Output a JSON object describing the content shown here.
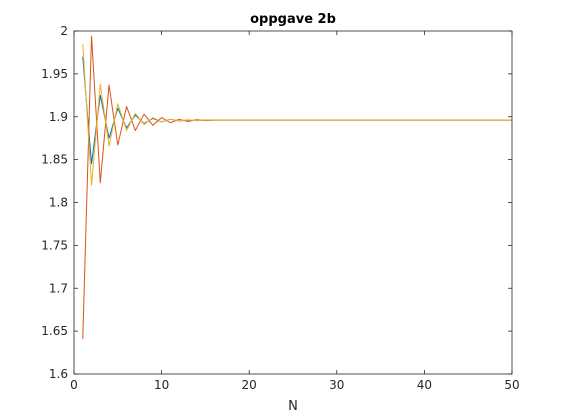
{
  "chart_data": {
    "type": "line",
    "title": "oppgave 2b",
    "xlabel": "N",
    "ylabel": "",
    "xlim": [
      0,
      50
    ],
    "ylim": [
      1.6,
      2.0
    ],
    "xticks": [
      "0",
      "10",
      "20",
      "30",
      "40",
      "50"
    ],
    "yticks": [
      "1.6",
      "1.65",
      "1.7",
      "1.75",
      "1.8",
      "1.85",
      "1.9",
      "1.95",
      "2"
    ],
    "grid": false,
    "series": [
      {
        "color": "#0072BD",
        "x": [
          1,
          2,
          3,
          4,
          5,
          6,
          7,
          8,
          9,
          10,
          11,
          12,
          13,
          14,
          15,
          16,
          17,
          18,
          19,
          20,
          21,
          22,
          23,
          24,
          25,
          26,
          27,
          28,
          29,
          30,
          31,
          32,
          33,
          34,
          35,
          36,
          37,
          38,
          39,
          40,
          41,
          42,
          43,
          44,
          45,
          46,
          47,
          48,
          49,
          50
        ],
        "y": [
          1.97,
          1.845,
          1.925,
          1.875,
          1.91,
          1.887,
          1.902,
          1.892,
          1.898,
          1.894,
          1.897,
          1.895,
          1.896,
          1.8955,
          1.896,
          1.896,
          1.896,
          1.896,
          1.896,
          1.896,
          1.896,
          1.896,
          1.896,
          1.896,
          1.896,
          1.896,
          1.896,
          1.896,
          1.896,
          1.896,
          1.896,
          1.896,
          1.896,
          1.896,
          1.896,
          1.896,
          1.896,
          1.896,
          1.896,
          1.896,
          1.896,
          1.896,
          1.896,
          1.896,
          1.896,
          1.896,
          1.896,
          1.896,
          1.896,
          1.896
        ]
      },
      {
        "color": "#D95319",
        "x": [
          1,
          2,
          3,
          4,
          5,
          6,
          7,
          8,
          9,
          10,
          11,
          12,
          13,
          14,
          15,
          16,
          17,
          18,
          19,
          20,
          21,
          22,
          23,
          24,
          25,
          26,
          27,
          28,
          29,
          30,
          31,
          32,
          33,
          34,
          35,
          36,
          37,
          38,
          39,
          40,
          41,
          42,
          43,
          44,
          45,
          46,
          47,
          48,
          49,
          50
        ],
        "y": [
          1.641,
          1.994,
          1.823,
          1.937,
          1.867,
          1.912,
          1.884,
          1.903,
          1.89,
          1.899,
          1.893,
          1.897,
          1.8945,
          1.8965,
          1.8955,
          1.896,
          1.896,
          1.896,
          1.896,
          1.896,
          1.896,
          1.896,
          1.896,
          1.896,
          1.896,
          1.896,
          1.896,
          1.896,
          1.896,
          1.896,
          1.896,
          1.896,
          1.896,
          1.896,
          1.896,
          1.896,
          1.896,
          1.896,
          1.896,
          1.896,
          1.896,
          1.896,
          1.896,
          1.896,
          1.896,
          1.896,
          1.896,
          1.896,
          1.896,
          1.896
        ]
      },
      {
        "color": "#EDB120",
        "x": [
          1,
          2,
          3,
          4,
          5,
          6,
          7,
          8,
          9,
          10,
          11,
          12,
          13,
          14,
          15,
          16,
          17,
          18,
          19,
          20,
          21,
          22,
          23,
          24,
          25,
          26,
          27,
          28,
          29,
          30,
          31,
          32,
          33,
          34,
          35,
          36,
          37,
          38,
          39,
          40,
          41,
          42,
          43,
          44,
          45,
          46,
          47,
          48,
          49,
          50
        ],
        "y": [
          1.985,
          1.82,
          1.938,
          1.866,
          1.915,
          1.884,
          1.904,
          1.891,
          1.899,
          1.894,
          1.897,
          1.895,
          1.8965,
          1.8955,
          1.896,
          1.896,
          1.896,
          1.896,
          1.896,
          1.896,
          1.896,
          1.896,
          1.896,
          1.896,
          1.896,
          1.896,
          1.896,
          1.896,
          1.896,
          1.896,
          1.896,
          1.896,
          1.896,
          1.896,
          1.896,
          1.896,
          1.896,
          1.896,
          1.896,
          1.896,
          1.896,
          1.896,
          1.896,
          1.896,
          1.896,
          1.896,
          1.896,
          1.896,
          1.896,
          1.896
        ]
      }
    ]
  }
}
